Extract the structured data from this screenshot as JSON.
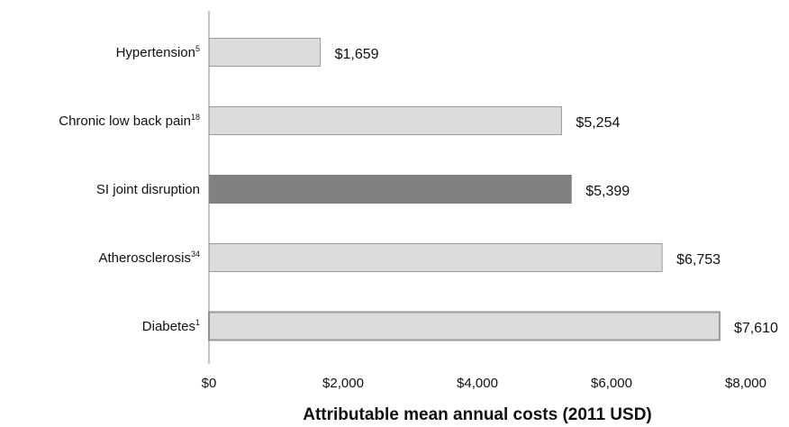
{
  "chart_data": {
    "type": "bar",
    "orientation": "horizontal",
    "categories": [
      {
        "label": "Hypertension",
        "sup": "5"
      },
      {
        "label": "Chronic low back pain",
        "sup": "18"
      },
      {
        "label": "SI joint disruption",
        "sup": ""
      },
      {
        "label": "Atherosclerosis",
        "sup": "34"
      },
      {
        "label": "Diabetes",
        "sup": "1"
      }
    ],
    "values": [
      1659,
      5254,
      5399,
      6753,
      7610
    ],
    "value_labels": [
      "$1,659",
      "$5,254",
      "$5,399",
      "$6,753",
      "$7,610"
    ],
    "highlight_index": 2,
    "xlabel": "Attributable mean annual costs (2011 USD)",
    "xlim": [
      0,
      8000
    ],
    "xticks": [
      0,
      2000,
      4000,
      6000,
      8000
    ],
    "xtick_labels": [
      "$0",
      "$2,000",
      "$4,000",
      "$6,000",
      "$8,000"
    ],
    "grid": false,
    "colors": {
      "bar_fill": "#dcdcdc",
      "bar_stroke": "#9a9a9a",
      "highlight_fill": "#808080",
      "axis": "#888888"
    }
  }
}
